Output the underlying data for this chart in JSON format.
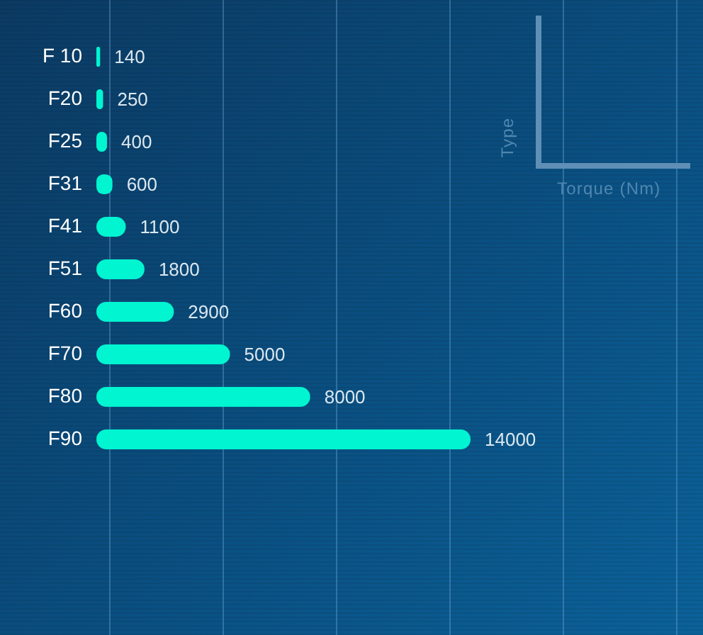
{
  "chart_data": {
    "type": "bar",
    "orientation": "horizontal",
    "categories": [
      "F 10",
      "F20",
      "F25",
      "F31",
      "F41",
      "F51",
      "F60",
      "F70",
      "F80",
      "F90"
    ],
    "values": [
      140,
      250,
      400,
      600,
      1100,
      1800,
      2900,
      5000,
      8000,
      14000
    ],
    "color": "#00f5d0",
    "data_labels": true,
    "tick_labels": "y",
    "annotations": [
      "Type",
      "Torque (Nm)"
    ]
  }
}
